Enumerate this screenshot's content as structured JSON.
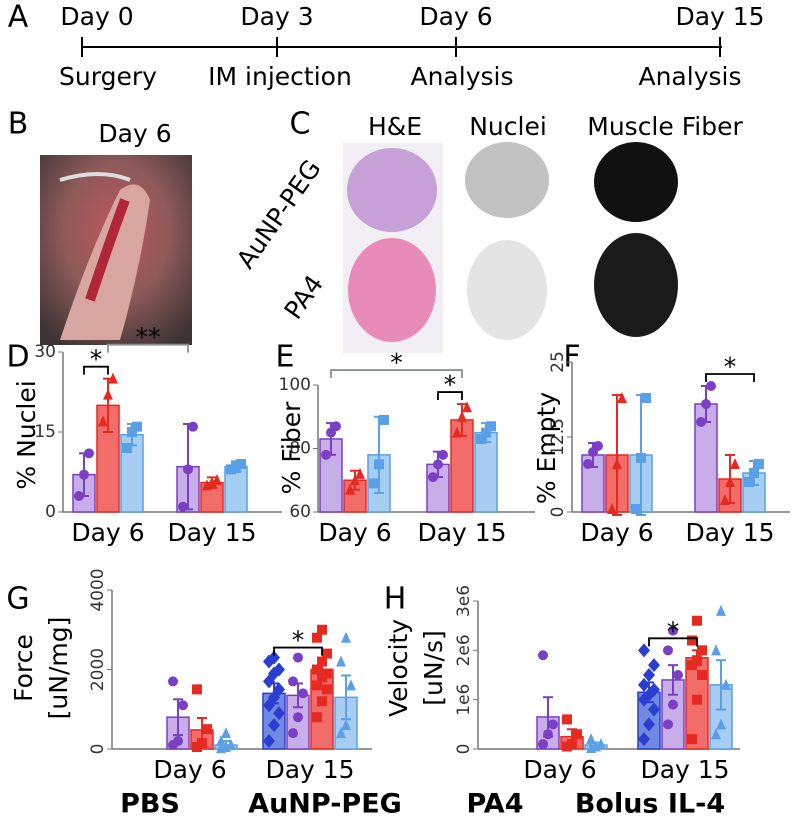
{
  "panel_labels": [
    "A",
    "B",
    "C",
    "D",
    "E",
    "F",
    "G",
    "H"
  ],
  "timeline": {
    "days": [
      "Day 0",
      "Day 3",
      "Day 6",
      "Day 15"
    ],
    "events": [
      "Surgery",
      "IM injection",
      "Analysis",
      "Analysis"
    ]
  },
  "panel_b": {
    "title": "Day 6"
  },
  "panel_c": {
    "columns": [
      "H&E",
      "Nuclei",
      "Muscle Fiber"
    ],
    "rows": [
      "AuNP-PEG",
      "PA4"
    ]
  },
  "chart_data": [
    {
      "type": "bar",
      "ylabel": [
        "% Nuclei"
      ],
      "categories": [
        "Day 6",
        "Day 15"
      ],
      "ylim": [
        0,
        30
      ],
      "yticks": [
        0,
        15,
        30
      ],
      "ytick_rotate": false,
      "series": [
        {
          "color": "#7b3fc4",
          "fill": "#c8aee8",
          "marker": "circle",
          "values": [
            7,
            8.5
          ],
          "errors": [
            4,
            8
          ],
          "points": [
            [
              3,
              7,
              11
            ],
            [
              1,
              8,
              16
            ]
          ]
        },
        {
          "color": "#e52a22",
          "fill": "#f26d6a",
          "marker": "triangle",
          "values": [
            20,
            5.5
          ],
          "errors": [
            5,
            1
          ],
          "points": [
            [
              17,
              22,
              25
            ],
            [
              5,
              5.5,
              6
            ]
          ]
        },
        {
          "color": "#5aa0e6",
          "fill": "#a8cdf2",
          "marker": "square",
          "values": [
            14.5,
            8.5
          ],
          "errors": [
            2,
            1
          ],
          "points": [
            [
              12,
              15,
              16
            ],
            [
              8,
              8.5,
              9
            ]
          ]
        }
      ],
      "annotations": [
        {
          "text": "*",
          "color": "#000000",
          "span": [
            [
              0,
              0
            ],
            [
              0,
              1
            ]
          ]
        },
        {
          "text": "**",
          "color": "#8a9090",
          "span": [
            [
              0,
              1
            ],
            [
              1,
              0
            ]
          ]
        }
      ]
    },
    {
      "type": "bar",
      "ylabel": [
        "% Fiber"
      ],
      "categories": [
        "Day 6",
        "Day 15"
      ],
      "ylim": [
        60,
        100
      ],
      "yticks": [
        60,
        80,
        100
      ],
      "ytick_rotate": false,
      "series": [
        {
          "color": "#7b3fc4",
          "fill": "#c8aee8",
          "marker": "circle",
          "values": [
            83,
            75
          ],
          "errors": [
            5,
            4
          ],
          "points": [
            [
              78,
              85,
              87
            ],
            [
              71,
              75,
              78
            ]
          ]
        },
        {
          "color": "#e52a22",
          "fill": "#f26d6a",
          "marker": "triangle",
          "values": [
            70,
            89
          ],
          "errors": [
            3,
            5
          ],
          "points": [
            [
              67,
              70,
              72
            ],
            [
              85,
              90,
              93
            ]
          ]
        },
        {
          "color": "#5aa0e6",
          "fill": "#a8cdf2",
          "marker": "square",
          "values": [
            78,
            85
          ],
          "errors": [
            12,
            3
          ],
          "points": [
            [
              69,
              75,
              89
            ],
            [
              83,
              85,
              87
            ]
          ]
        }
      ],
      "annotations": [
        {
          "text": "*",
          "color": "#000000",
          "span": [
            [
              1,
              0
            ],
            [
              1,
              1
            ]
          ]
        },
        {
          "text": "*",
          "color": "#8a9090",
          "span": [
            [
              0,
              0
            ],
            [
              1,
              1
            ]
          ]
        }
      ]
    },
    {
      "type": "bar",
      "ylabel": [
        "% Empty"
      ],
      "categories": [
        "Day 6",
        "Day 15"
      ],
      "ylim": [
        0,
        25
      ],
      "yticks": [
        0,
        12.5,
        25
      ],
      "ytick_rotate": true,
      "series": [
        {
          "color": "#7b3fc4",
          "fill": "#c8aee8",
          "marker": "circle",
          "values": [
            9.5,
            18
          ],
          "errors": [
            2,
            3
          ],
          "points": [
            [
              8,
              10,
              11
            ],
            [
              15,
              18,
              21
            ]
          ]
        },
        {
          "color": "#e52a22",
          "fill": "#f26d6a",
          "marker": "triangle",
          "values": [
            9.5,
            5.5
          ],
          "errors": [
            10,
            4
          ],
          "points": [
            [
              0.5,
              8,
              19
            ],
            [
              2,
              5,
              8
            ]
          ]
        },
        {
          "color": "#5aa0e6",
          "fill": "#a8cdf2",
          "marker": "square",
          "values": [
            9.5,
            6.5
          ],
          "errors": [
            10,
            2
          ],
          "points": [
            [
              0.5,
              9,
              19
            ],
            [
              5,
              6.5,
              8
            ]
          ]
        }
      ],
      "annotations": [
        {
          "text": "*",
          "color": "#000000",
          "span": [
            [
              1,
              0
            ],
            [
              1,
              2
            ]
          ]
        }
      ]
    },
    {
      "type": "bar",
      "ylabel": [
        "Force",
        "[uN/mg]"
      ],
      "categories": [
        "Day 6",
        "Day 15"
      ],
      "ylim": [
        0,
        4000
      ],
      "yticks": [
        0,
        2000,
        4000
      ],
      "ytick_rotate": true,
      "series": [
        {
          "name": "PBS",
          "legend_color": "#2b3bd6",
          "color": "#2a3fd0",
          "fill": "#6f8ae0",
          "marker": "diamond",
          "values": [
            null,
            1400
          ],
          "errors": [
            null,
            250
          ],
          "points": [
            null,
            [
              200,
              600,
              900,
              1100,
              1300,
              1500,
              1700,
              1900,
              2000,
              2200,
              2300
            ]
          ]
        },
        {
          "name": "AuNP-PEG",
          "legend_color": "#7c3ee0",
          "color": "#7b3fc4",
          "fill": "#c8aee8",
          "marker": "circle",
          "values": [
            800,
            1350
          ],
          "errors": [
            450,
            300
          ],
          "points": [
            [
              100,
              200,
              1100,
              1700
            ],
            [
              400,
              800,
              1400,
              1700,
              2300
            ]
          ]
        },
        {
          "name": "PA4",
          "legend_color": "#e8201a",
          "color": "#e52a22",
          "fill": "#f26d6a",
          "marker": "square",
          "values": [
            480,
            2000
          ],
          "errors": [
            300,
            250
          ],
          "points": [
            [
              50,
              150,
              500,
              1500
            ],
            [
              800,
              1200,
              1500,
              1600,
              1800,
              1900,
              2000,
              2200,
              2400,
              2800,
              3000
            ]
          ]
        },
        {
          "name": "Bolus IL-4",
          "legend_color": "#63d2d8",
          "color": "#5aa0e6",
          "fill": "#a8cdf2",
          "marker": "triangle",
          "values": [
            100,
            1300
          ],
          "errors": [
            100,
            550
          ],
          "points": [
            [
              20,
              50,
              100,
              200,
              400
            ],
            [
              400,
              600,
              1600,
              2200,
              2800
            ]
          ]
        }
      ],
      "annotations": [
        {
          "text": "*",
          "color": "#000000",
          "span": [
            [
              1,
              0
            ],
            [
              1,
              2
            ]
          ]
        }
      ]
    },
    {
      "type": "bar",
      "ylabel": [
        "Velocity",
        "[uN/s]"
      ],
      "categories": [
        "Day 6",
        "Day 15"
      ],
      "ylim": [
        0,
        3000000
      ],
      "yticks": [
        0,
        {
          "value": 1000000,
          "label": "1e6"
        },
        {
          "value": 2000000,
          "label": "2e6"
        },
        {
          "value": 3000000,
          "label": "3e6"
        }
      ],
      "ytick_rotate": true,
      "series": [
        {
          "color": "#2a3fd0",
          "fill": "#6f8ae0",
          "marker": "diamond",
          "values": [
            null,
            1150000
          ],
          "errors": [
            null,
            200000
          ],
          "points": [
            null,
            [
              200000,
              500000,
              800000,
              1000000,
              1100000,
              1200000,
              1300000,
              1500000,
              1700000,
              2000000
            ]
          ]
        },
        {
          "color": "#7b3fc4",
          "fill": "#c8aee8",
          "marker": "circle",
          "values": [
            650000,
            1400000
          ],
          "errors": [
            400000,
            300000
          ],
          "points": [
            [
              100000,
              300000,
              500000,
              1900000
            ],
            [
              500000,
              900000,
              1500000,
              2000000,
              2400000
            ]
          ]
        },
        {
          "color": "#e52a22",
          "fill": "#f26d6a",
          "marker": "square",
          "values": [
            250000,
            1850000
          ],
          "errors": [
            150000,
            150000
          ],
          "points": [
            [
              50000,
              100000,
              300000,
              600000
            ],
            [
              200000,
              1000000,
              1500000,
              1700000,
              1800000,
              2000000,
              2200000,
              2600000
            ]
          ]
        },
        {
          "color": "#5aa0e6",
          "fill": "#a8cdf2",
          "marker": "triangle",
          "values": [
            80000,
            1300000
          ],
          "errors": [
            50000,
            500000
          ],
          "points": [
            [
              20000,
              50000,
              100000,
              200000
            ],
            [
              300000,
              500000,
              1300000,
              2000000,
              2800000
            ]
          ]
        }
      ],
      "annotations": [
        {
          "text": "*",
          "color": "#000000",
          "span": [
            [
              1,
              0
            ],
            [
              1,
              2
            ]
          ]
        }
      ]
    }
  ]
}
